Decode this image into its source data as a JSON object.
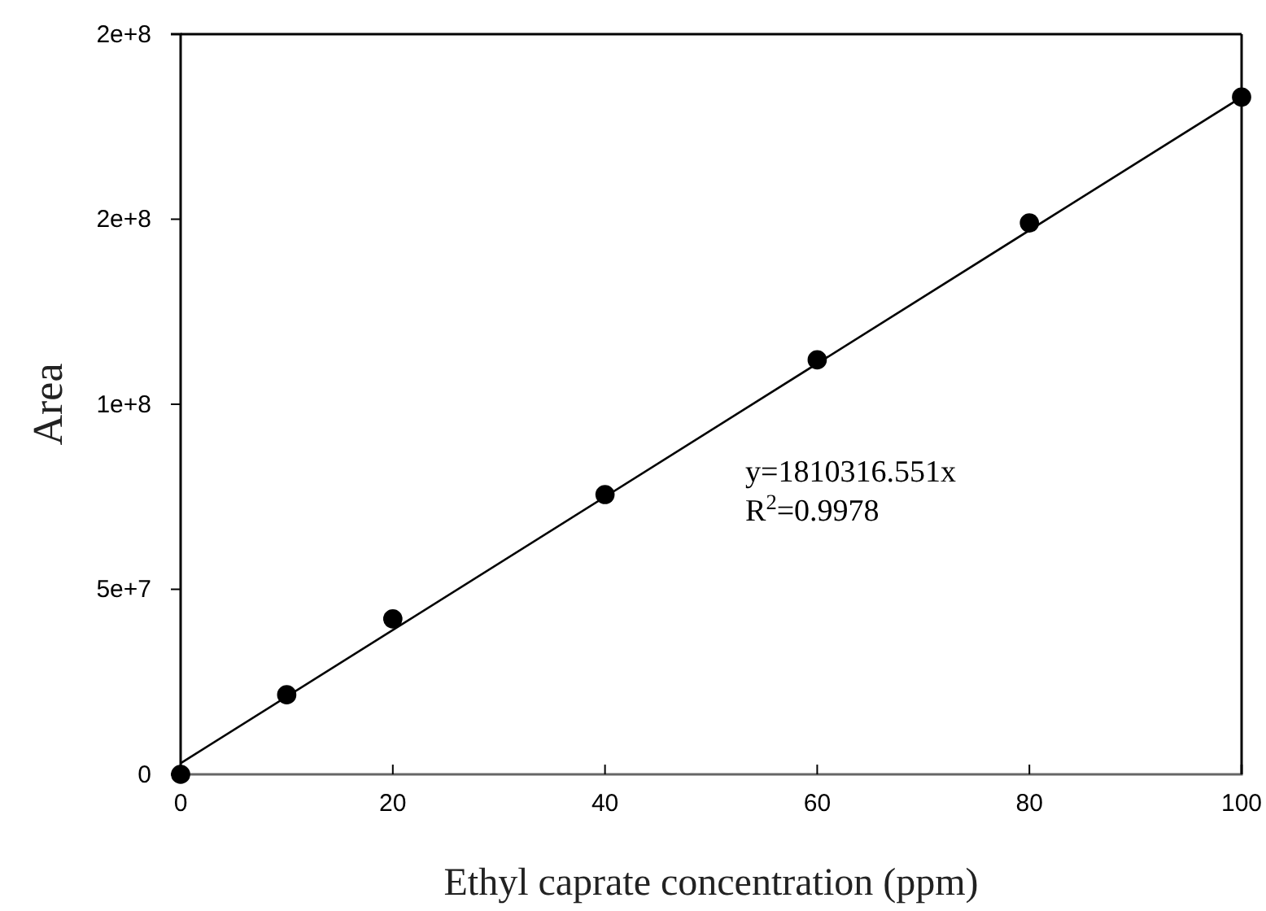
{
  "chart_data": {
    "type": "scatter",
    "xlabel": "Ethyl caprate concentration (ppm)",
    "ylabel": "Area",
    "xlim": [
      0,
      100
    ],
    "xticks": [
      0,
      20,
      40,
      60,
      80,
      100
    ],
    "ylim": [
      0,
      200000000
    ],
    "yticks": [
      {
        "value": 0,
        "label": "0"
      },
      {
        "value": 50000000,
        "label": "5e+7"
      },
      {
        "value": 100000000,
        "label": "1e+8"
      },
      {
        "value": 150000000,
        "label": "2e+8"
      },
      {
        "value": 200000000,
        "label": "2e+8"
      }
    ],
    "marker": "circle",
    "grid": false,
    "series": [
      {
        "color": "#000000",
        "x": [
          0,
          10,
          20,
          40,
          60,
          80,
          100
        ],
        "values": [
          0,
          21500000,
          42000000,
          75600000,
          112000000,
          149000000,
          183000000
        ]
      },
      {
        "type": "line",
        "color": "#000000",
        "x": [
          0,
          100
        ],
        "values": [
          3000000,
          183000000
        ],
        "marker": "none"
      }
    ],
    "annotations": [
      "y=1810316.551x",
      "R$^{2}$=0.9978"
    ]
  }
}
